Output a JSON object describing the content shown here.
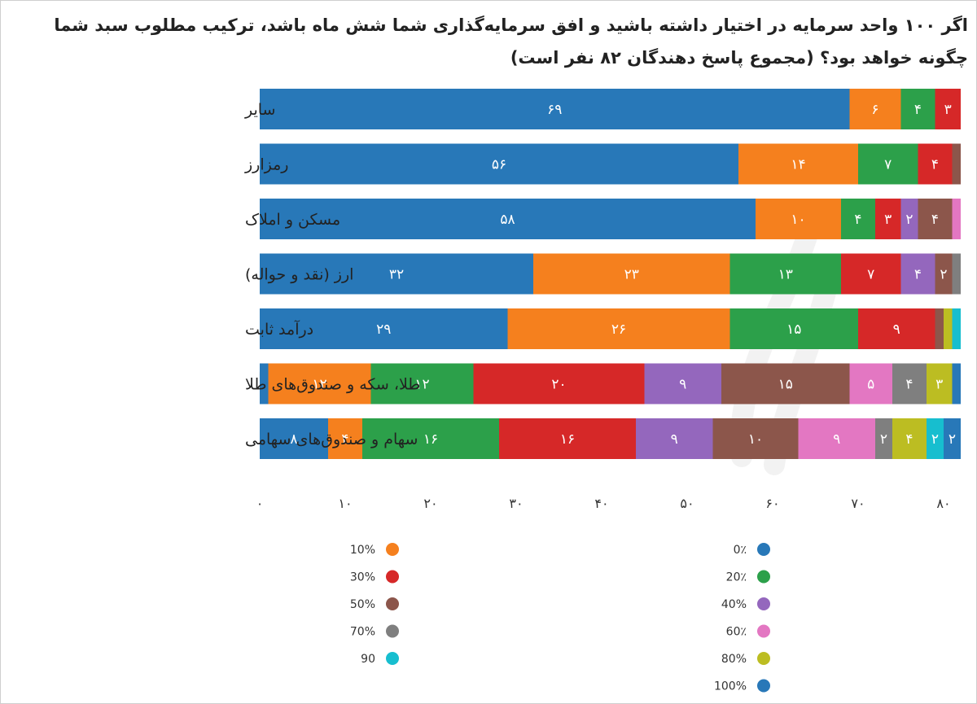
{
  "title": "اگر ۱۰۰ واحد سرمایه در اختیار داشته باشید و افق سرمایه‌گذاری شما شش ماه باشد، ترکیب مطلوب سبد شما چگونه خواهد بود؟ (مجموع پاسخ دهندگان ۸۲ نفر است)",
  "chart_data": {
    "type": "bar",
    "orientation": "horizontal",
    "stacked": true,
    "categories": [
      "سایر",
      "رمزارز",
      "مسکن و املاک",
      "ارز (نقد و حواله)",
      "درآمد ثابت",
      "طلا، سکه و صندوق‌های طلا",
      "سهام و صندوق‌های سهامی"
    ],
    "series": [
      {
        "name": "0٪",
        "color": "#2878b8",
        "values": [
          69,
          56,
          58,
          32,
          29,
          1,
          8
        ]
      },
      {
        "name": "10%",
        "color": "#f5801e",
        "values": [
          6,
          14,
          10,
          23,
          26,
          12,
          4
        ]
      },
      {
        "name": "20٪",
        "color": "#2ca04a",
        "values": [
          4,
          7,
          4,
          13,
          15,
          12,
          16
        ]
      },
      {
        "name": "30%",
        "color": "#d62828",
        "values": [
          3,
          4,
          3,
          7,
          9,
          20,
          16
        ]
      },
      {
        "name": "40%",
        "color": "#9467bd",
        "values": [
          0,
          0,
          2,
          4,
          0,
          9,
          9
        ]
      },
      {
        "name": "50%",
        "color": "#8c564b",
        "values": [
          0,
          1,
          4,
          2,
          1,
          15,
          10
        ]
      },
      {
        "name": "60٪",
        "color": "#e377c2",
        "values": [
          0,
          0,
          1,
          0,
          0,
          5,
          9
        ]
      },
      {
        "name": "70%",
        "color": "#7f7f7f",
        "values": [
          0,
          0,
          0,
          1,
          0,
          4,
          2
        ]
      },
      {
        "name": "80%",
        "color": "#bcbd22",
        "values": [
          0,
          0,
          0,
          0,
          1,
          3,
          4
        ]
      },
      {
        "name": "90",
        "color": "#17becf",
        "values": [
          0,
          0,
          0,
          0,
          1,
          0,
          2
        ]
      },
      {
        "name": "100%",
        "color": "#2878b8",
        "values": [
          0,
          0,
          0,
          0,
          0,
          1,
          2
        ]
      }
    ],
    "bar_labels": [
      [
        "۶۹",
        "۶",
        "۴",
        "۳",
        "",
        "",
        "",
        "",
        "",
        "",
        ""
      ],
      [
        "۵۶",
        "۱۴",
        "۷",
        "۴",
        "",
        "",
        "",
        "",
        "",
        "",
        ""
      ],
      [
        "۵۸",
        "۱۰",
        "۴",
        "۳",
        "۲",
        "۴",
        "",
        "",
        "",
        "",
        ""
      ],
      [
        "۳۲",
        "۲۳",
        "۱۳",
        "۷",
        "۴",
        "۲",
        "",
        "",
        "",
        "",
        ""
      ],
      [
        "۲۹",
        "۲۶",
        "۱۵",
        "۹",
        "",
        "",
        "",
        "",
        "",
        "",
        ""
      ],
      [
        "",
        "۱۲",
        "۱۲",
        "۲۰",
        "۹",
        "۱۵",
        "۵",
        "۴",
        "۳",
        "",
        ""
      ],
      [
        "۸",
        "۴",
        "۱۶",
        "۱۶",
        "۹",
        "۱۰",
        "۹",
        "۲",
        "۴",
        "۲",
        "۲"
      ]
    ],
    "x_ticks": [
      0,
      10,
      20,
      30,
      40,
      50,
      60,
      70,
      80
    ],
    "x_tick_labels": [
      "۰",
      "۱۰",
      "۲۰",
      "۳۰",
      "۴۰",
      "۵۰",
      "۶۰",
      "۷۰",
      "۸۰"
    ],
    "xlim": [
      0,
      82
    ],
    "legend": {
      "placement": "bottom",
      "columns": [
        [
          "10%",
          "30%",
          "50%",
          "70%",
          "90"
        ],
        [
          "0٪",
          "20٪",
          "40%",
          "60٪",
          "80%",
          "100%"
        ]
      ]
    },
    "grid": false
  }
}
